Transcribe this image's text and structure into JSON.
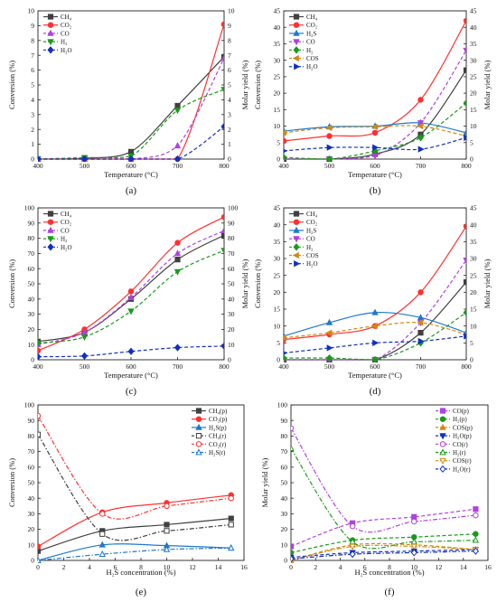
{
  "chart_data": [
    {
      "panel": "(a)",
      "type": "line",
      "xlabel": "Temperature (°C)",
      "ylabel_left": "Conversion (%)",
      "ylabel_right": "Molar yield (%)",
      "x": [
        400,
        500,
        600,
        700,
        800
      ],
      "x_ticks": [
        400,
        500,
        600,
        700,
        800
      ],
      "xlim": [
        400,
        800
      ],
      "ylim_left": [
        0,
        10
      ],
      "ylim_right": [
        0,
        10
      ],
      "y_ticks_left": [
        0,
        1,
        2,
        3,
        4,
        5,
        6,
        7,
        8,
        9,
        10
      ],
      "y_ticks_right": [
        0,
        1,
        2,
        3,
        4,
        5,
        6,
        7,
        8,
        9,
        10
      ],
      "legend_position": "top-left",
      "series": [
        {
          "name": "CH₄",
          "axis": "left",
          "values": [
            0,
            0.05,
            0.5,
            3.6,
            6.9
          ],
          "color": "#404040",
          "marker": "square",
          "dashed": false
        },
        {
          "name": "CO₂",
          "axis": "left",
          "values": [
            0,
            0,
            0,
            0,
            9.1
          ],
          "color": "#ff3030",
          "marker": "circle",
          "dashed": false
        },
        {
          "name": "CO",
          "axis": "right",
          "values": [
            0,
            0,
            0,
            0.9,
            6.8
          ],
          "color": "#b040e0",
          "marker": "triangle",
          "dashed": true
        },
        {
          "name": "H₂",
          "axis": "right",
          "values": [
            0,
            0.1,
            0.2,
            3.3,
            4.7
          ],
          "color": "#1a9a1a",
          "marker": "triangle-down",
          "dashed": true
        },
        {
          "name": "H₂O",
          "axis": "right",
          "values": [
            0,
            0,
            0,
            0,
            2.2
          ],
          "color": "#1030c0",
          "marker": "diamond",
          "dashed": true
        }
      ]
    },
    {
      "panel": "(b)",
      "type": "line",
      "xlabel": "Temperature (°C)",
      "ylabel_left": "Conversion (%)",
      "ylabel_right": "Molar yield (%)",
      "x": [
        400,
        500,
        600,
        700,
        800
      ],
      "x_ticks": [
        400,
        500,
        600,
        700,
        800
      ],
      "xlim": [
        400,
        800
      ],
      "ylim_left": [
        0,
        45
      ],
      "ylim_right": [
        0,
        45
      ],
      "y_ticks_left": [
        0,
        5,
        10,
        15,
        20,
        25,
        30,
        35,
        40,
        45
      ],
      "y_ticks_right": [
        0,
        5,
        10,
        15,
        20,
        25,
        30,
        35,
        40,
        45
      ],
      "legend_position": "top-left",
      "series": [
        {
          "name": "CH₄",
          "axis": "left",
          "values": [
            0,
            0,
            1.5,
            7.5,
            27
          ],
          "color": "#404040",
          "marker": "square",
          "dashed": false
        },
        {
          "name": "CO₂",
          "axis": "left",
          "values": [
            5.5,
            7,
            8,
            18,
            42
          ],
          "color": "#ff3030",
          "marker": "circle",
          "dashed": false
        },
        {
          "name": "H₂S",
          "axis": "left",
          "values": [
            8.5,
            9.8,
            10,
            11,
            8
          ],
          "color": "#1f78d0",
          "marker": "triangle",
          "dashed": false
        },
        {
          "name": "CO",
          "axis": "right",
          "values": [
            0,
            0,
            1,
            11,
            33
          ],
          "color": "#b040e0",
          "marker": "triangle-down",
          "dashed": true
        },
        {
          "name": "H₂",
          "axis": "right",
          "values": [
            0.5,
            0,
            2.5,
            6.5,
            17
          ],
          "color": "#1a9a1a",
          "marker": "diamond",
          "dashed": true
        },
        {
          "name": "COS",
          "axis": "right",
          "values": [
            8,
            9.5,
            9.8,
            10,
            7
          ],
          "color": "#d08a10",
          "marker": "triangle-left",
          "dashed": true
        },
        {
          "name": "H₂O",
          "axis": "right",
          "values": [
            2.5,
            3.5,
            3.5,
            3,
            6.5
          ],
          "color": "#1030c0",
          "marker": "triangle-right",
          "dashed": true
        }
      ]
    },
    {
      "panel": "(c)",
      "type": "line",
      "xlabel": "Temperature (°C)",
      "ylabel_left": "Conversion (%)",
      "ylabel_right": "Molar yield (%)",
      "x": [
        400,
        500,
        600,
        700,
        800
      ],
      "x_ticks": [
        400,
        500,
        600,
        700,
        800
      ],
      "xlim": [
        400,
        800
      ],
      "ylim_left": [
        0,
        100
      ],
      "ylim_right": [
        0,
        100
      ],
      "y_ticks_left": [
        0,
        10,
        20,
        30,
        40,
        50,
        60,
        70,
        80,
        90,
        100
      ],
      "y_ticks_right": [
        0,
        10,
        20,
        30,
        40,
        50,
        60,
        70,
        80,
        90,
        100
      ],
      "legend_position": "top-left",
      "series": [
        {
          "name": "CH₄",
          "axis": "left",
          "values": [
            12,
            18,
            40,
            66,
            82
          ],
          "color": "#404040",
          "marker": "square",
          "dashed": false
        },
        {
          "name": "CO₂",
          "axis": "left",
          "values": [
            6,
            20,
            45,
            77,
            94
          ],
          "color": "#ff3030",
          "marker": "circle",
          "dashed": false
        },
        {
          "name": "CO",
          "axis": "right",
          "values": [
            10,
            18,
            41,
            70,
            85
          ],
          "color": "#b040e0",
          "marker": "triangle",
          "dashed": true
        },
        {
          "name": "H₂",
          "axis": "right",
          "values": [
            11,
            15,
            32,
            58,
            72
          ],
          "color": "#1a9a1a",
          "marker": "triangle-down",
          "dashed": true
        },
        {
          "name": "H₂O",
          "axis": "right",
          "values": [
            2,
            2.5,
            5.5,
            8,
            9
          ],
          "color": "#1030c0",
          "marker": "diamond",
          "dashed": true
        }
      ]
    },
    {
      "panel": "(d)",
      "type": "line",
      "xlabel": "Temperature (°C)",
      "ylabel_left": "Conversion (%)",
      "ylabel_right": "Molar yield (%)",
      "x": [
        400,
        500,
        600,
        700,
        800
      ],
      "x_ticks": [
        400,
        500,
        600,
        700,
        800
      ],
      "xlim": [
        400,
        800
      ],
      "ylim_left": [
        0,
        45
      ],
      "ylim_right": [
        0,
        45
      ],
      "y_ticks_left": [
        0,
        5,
        10,
        15,
        20,
        25,
        30,
        35,
        40,
        45
      ],
      "y_ticks_right": [
        0,
        5,
        10,
        15,
        20,
        25,
        30,
        35,
        40,
        45
      ],
      "legend_position": "top-left",
      "series": [
        {
          "name": "CH₄",
          "axis": "left",
          "values": [
            0,
            0,
            0,
            8,
            23
          ],
          "color": "#404040",
          "marker": "square",
          "dashed": false
        },
        {
          "name": "CO₂",
          "axis": "left",
          "values": [
            6,
            7.5,
            10,
            20,
            39.5
          ],
          "color": "#ff3030",
          "marker": "circle",
          "dashed": false
        },
        {
          "name": "H₂S",
          "axis": "left",
          "values": [
            7,
            11,
            14,
            12.5,
            8
          ],
          "color": "#1f78d0",
          "marker": "triangle",
          "dashed": false
        },
        {
          "name": "CO",
          "axis": "right",
          "values": [
            0,
            0,
            0,
            11,
            29.5
          ],
          "color": "#b040e0",
          "marker": "triangle-down",
          "dashed": true
        },
        {
          "name": "H₂",
          "axis": "right",
          "values": [
            0.5,
            0.5,
            0,
            5,
            14
          ],
          "color": "#1a9a1a",
          "marker": "diamond",
          "dashed": true
        },
        {
          "name": "COS",
          "axis": "right",
          "values": [
            6.5,
            8,
            10,
            11,
            7.5
          ],
          "color": "#d08a10",
          "marker": "triangle-left",
          "dashed": true
        },
        {
          "name": "H₂O",
          "axis": "right",
          "values": [
            2,
            3.5,
            5,
            5.5,
            7
          ],
          "color": "#1030c0",
          "marker": "triangle-right",
          "dashed": true
        }
      ]
    },
    {
      "panel": "(e)",
      "type": "line",
      "xlabel": "H₂S concentration (%)",
      "ylabel_left": "Conversion (%)",
      "xlim": [
        0,
        16
      ],
      "x_ticks": [
        0,
        2,
        4,
        6,
        8,
        10,
        12,
        14,
        16
      ],
      "ylim_left": [
        0,
        100
      ],
      "y_ticks_left": [
        0,
        10,
        20,
        30,
        40,
        50,
        60,
        70,
        80,
        90,
        100
      ],
      "legend_position": "top-right",
      "series": [
        {
          "name": "CH₄(p)",
          "x": [
            0,
            5,
            10,
            15
          ],
          "values": [
            6,
            19,
            23,
            27
          ],
          "color": "#404040",
          "marker": "square",
          "dashed": false,
          "filled": true
        },
        {
          "name": "CO₂(p)",
          "x": [
            0,
            5,
            10,
            15
          ],
          "values": [
            9,
            31,
            37,
            42
          ],
          "color": "#ff3030",
          "marker": "circle",
          "dashed": false,
          "filled": true
        },
        {
          "name": "H₂S(p)",
          "x": [
            0,
            5,
            10,
            15
          ],
          "values": [
            0,
            10,
            9.5,
            8
          ],
          "color": "#1f78d0",
          "marker": "triangle",
          "dashed": false,
          "filled": true
        },
        {
          "name": "CH₄(r)",
          "x": [
            0,
            5,
            10,
            15
          ],
          "values": [
            81,
            17,
            19,
            23
          ],
          "color": "#404040",
          "marker": "square",
          "dashed": true,
          "filled": false
        },
        {
          "name": "CO₂(r)",
          "x": [
            0,
            5,
            10,
            15
          ],
          "values": [
            93,
            30,
            35,
            40
          ],
          "color": "#ff3030",
          "marker": "circle",
          "dashed": true,
          "filled": false
        },
        {
          "name": "H₂S(r)",
          "x": [
            0,
            5,
            10,
            15
          ],
          "values": [
            0,
            4,
            7,
            8
          ],
          "color": "#1f78d0",
          "marker": "triangle",
          "dashed": true,
          "filled": false
        }
      ]
    },
    {
      "panel": "(f)",
      "type": "line",
      "xlabel": "H₂S concentration (%)",
      "ylabel_left": "Molar yield (%)",
      "xlim": [
        0,
        16
      ],
      "x_ticks": [
        0,
        2,
        4,
        6,
        8,
        10,
        12,
        14,
        16
      ],
      "ylim_left": [
        0,
        100
      ],
      "y_ticks_left": [
        0,
        10,
        20,
        30,
        40,
        50,
        60,
        70,
        80,
        90,
        100
      ],
      "legend_position": "top-right",
      "series": [
        {
          "name": "CO(p)",
          "x": [
            0,
            5,
            10,
            15
          ],
          "values": [
            9,
            24,
            28,
            33
          ],
          "color": "#b040e0",
          "marker": "square",
          "dashed": true,
          "filled": true
        },
        {
          "name": "H₂(p)",
          "x": [
            0,
            5,
            10,
            15
          ],
          "values": [
            5,
            13,
            15,
            17
          ],
          "color": "#1a9a1a",
          "marker": "circle",
          "dashed": true,
          "filled": true
        },
        {
          "name": "COS(p)",
          "x": [
            0,
            5,
            10,
            15
          ],
          "values": [
            0,
            10,
            10,
            7
          ],
          "color": "#d08a10",
          "marker": "triangle",
          "dashed": true,
          "filled": true
        },
        {
          "name": "H₂O(p)",
          "x": [
            0,
            5,
            10,
            15
          ],
          "values": [
            2,
            5,
            6,
            7
          ],
          "color": "#1030c0",
          "marker": "triangle-down",
          "dashed": true,
          "filled": true
        },
        {
          "name": "CO(r)",
          "x": [
            0,
            5,
            10,
            15
          ],
          "values": [
            85,
            22,
            25,
            29
          ],
          "color": "#b040e0",
          "marker": "circle",
          "dashed": true,
          "filled": false
        },
        {
          "name": "H₂(r)",
          "x": [
            0,
            5,
            10,
            15
          ],
          "values": [
            72,
            12,
            12,
            13
          ],
          "color": "#1a9a1a",
          "marker": "triangle",
          "dashed": true,
          "filled": false
        },
        {
          "name": "COS(r)",
          "x": [
            0,
            5,
            10,
            15
          ],
          "values": [
            0,
            9,
            9,
            7
          ],
          "color": "#d08a10",
          "marker": "triangle-down",
          "dashed": true,
          "filled": false
        },
        {
          "name": "H₂O(r)",
          "x": [
            0,
            5,
            10,
            15
          ],
          "values": [
            1,
            4,
            5,
            6
          ],
          "color": "#1030c0",
          "marker": "diamond",
          "dashed": true,
          "filled": false
        }
      ]
    }
  ]
}
